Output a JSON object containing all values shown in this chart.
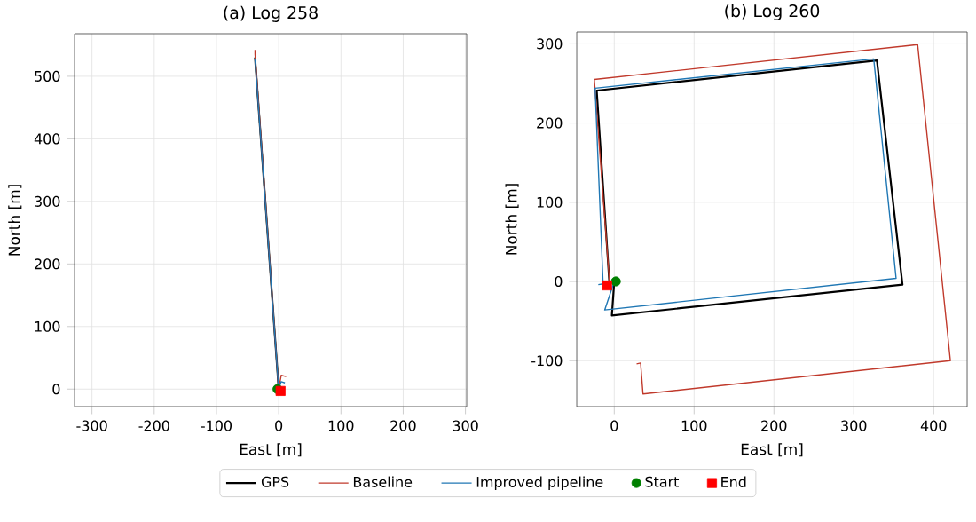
{
  "chart_data": [
    {
      "type": "line",
      "title": "(a) Log 258",
      "xlabel": "East [m]",
      "ylabel": "North [m]",
      "xlim": [
        -328,
        302
      ],
      "ylim": [
        -28,
        568
      ],
      "xticks": [
        -300,
        -200,
        -100,
        0,
        100,
        200,
        300
      ],
      "yticks": [
        0,
        100,
        200,
        300,
        400,
        500
      ],
      "grid": true,
      "legend": "bottom",
      "series": [
        {
          "name": "GPS",
          "color": "#000000",
          "x": [
            0,
            -38
          ],
          "values": [
            0,
            530
          ]
        },
        {
          "name": "Baseline",
          "color": "#c0392b",
          "x": [
            12,
            4,
            0,
            -38,
            -38
          ],
          "values": [
            20,
            22,
            0,
            535,
            542
          ]
        },
        {
          "name": "Improved pipeline",
          "color": "#1f77b4",
          "x": [
            10,
            4,
            0,
            -38
          ],
          "values": [
            10,
            12,
            0,
            528
          ]
        },
        {
          "name": "Start",
          "type": "scatter",
          "marker": "circle",
          "color": "#008000",
          "x": [
            -2
          ],
          "values": [
            0
          ]
        },
        {
          "name": "End",
          "type": "scatter",
          "marker": "square",
          "color": "#ff0000",
          "x": [
            3
          ],
          "values": [
            -3
          ]
        }
      ]
    },
    {
      "type": "line",
      "title": "(b) Log 260",
      "xlabel": "East [m]",
      "ylabel": "North [m]",
      "xlim": [
        -47,
        442
      ],
      "ylim": [
        -158,
        315
      ],
      "xticks": [
        0,
        100,
        200,
        300,
        400
      ],
      "yticks": [
        -100,
        0,
        100,
        200,
        300
      ],
      "grid": true,
      "series": [
        {
          "color": "#000000",
          "x": [
            0,
            -3,
            361,
            329,
            -22,
            -6
          ],
          "values": [
            0,
            -43,
            -4,
            279,
            241,
            -3
          ]
        },
        {
          "color": "#c0392b",
          "x": [
            -6,
            -25,
            380,
            421,
            36,
            33,
            28
          ],
          "values": [
            0,
            255,
            299,
            -100,
            -142,
            -103,
            -104
          ]
        },
        {
          "color": "#1f77b4",
          "x": [
            0,
            -12,
            353,
            325,
            -24,
            -14,
            -20
          ],
          "values": [
            0,
            -36,
            4,
            281,
            244,
            -3,
            -4
          ]
        },
        {
          "type": "scatter",
          "marker": "circle",
          "color": "#008000",
          "x": [
            2
          ],
          "values": [
            0
          ]
        },
        {
          "type": "scatter",
          "marker": "square",
          "color": "#ff0000",
          "x": [
            -9
          ],
          "values": [
            -5
          ]
        }
      ]
    }
  ]
}
